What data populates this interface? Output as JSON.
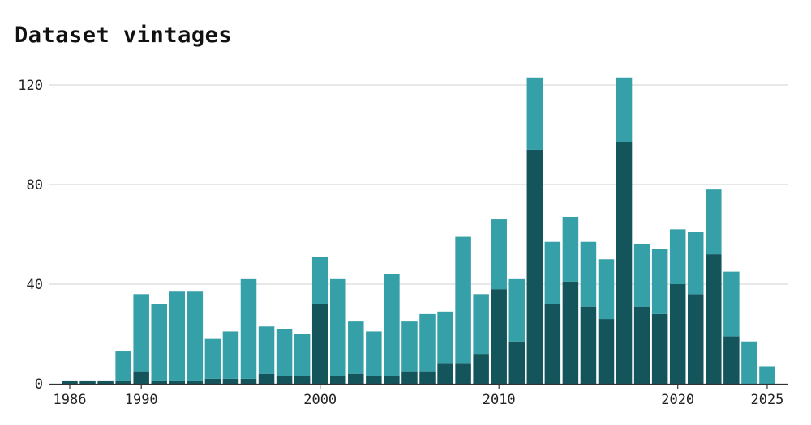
{
  "chart_data": {
    "type": "bar",
    "stacked": true,
    "title": "Dataset vintages",
    "xlabel": "",
    "ylabel": "",
    "ylim": [
      0,
      123
    ],
    "grid": true,
    "legend": "none",
    "colors": {
      "lower": "#14555c",
      "upper": "#35a0a8",
      "grid": "#d9d9d9",
      "axis": "#333333"
    },
    "categories": [
      1986,
      1987,
      1988,
      1989,
      1990,
      1991,
      1992,
      1993,
      1994,
      1995,
      1996,
      1997,
      1998,
      1999,
      2000,
      2001,
      2002,
      2003,
      2004,
      2005,
      2006,
      2007,
      2008,
      2009,
      2010,
      2011,
      2012,
      2013,
      2014,
      2015,
      2016,
      2017,
      2018,
      2019,
      2020,
      2021,
      2022,
      2023,
      2024,
      2025
    ],
    "series": [
      {
        "values": [
          1,
          1,
          1,
          1,
          5,
          1,
          1,
          1,
          2,
          2,
          2,
          4,
          3,
          3,
          32,
          3,
          4,
          3,
          3,
          5,
          5,
          8,
          8,
          12,
          38,
          17,
          94,
          32,
          41,
          31,
          26,
          97,
          31,
          28,
          40,
          36,
          52,
          19,
          0,
          0
        ]
      },
      {
        "values": [
          0,
          0,
          0,
          12,
          31,
          31,
          36,
          36,
          16,
          19,
          40,
          19,
          19,
          17,
          19,
          39,
          21,
          18,
          41,
          20,
          23,
          21,
          51,
          24,
          28,
          25,
          29,
          25,
          26,
          26,
          24,
          26,
          25,
          26,
          22,
          25,
          26,
          26,
          17,
          7
        ]
      }
    ],
    "x_ticks": [
      "1986",
      "1990",
      "2000",
      "2010",
      "2020",
      "2025"
    ],
    "y_ticks": [
      "0",
      "40",
      "80",
      "120"
    ]
  }
}
